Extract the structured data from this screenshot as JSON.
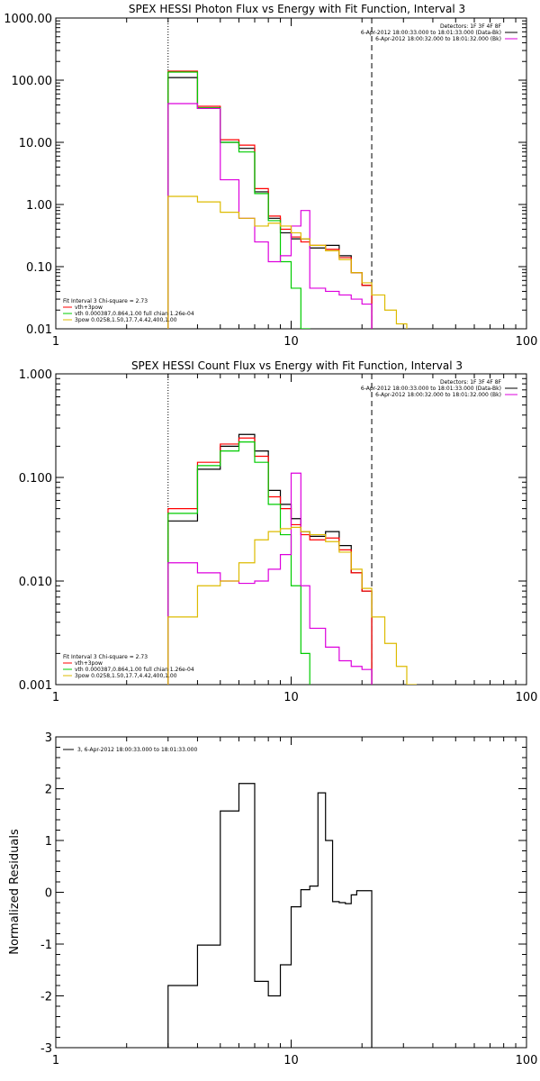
{
  "chart_data": [
    {
      "type": "line",
      "title": "SPEX HESSI Photon Flux vs Energy with Fit Function, Interval 3",
      "xlabel": "",
      "ylabel": "",
      "xscale": "log",
      "yscale": "log",
      "xlim": [
        1,
        100
      ],
      "ylim": [
        0.01,
        1000
      ],
      "x_ticks": [
        {
          "v": 1,
          "label": "1"
        },
        {
          "v": 10,
          "label": "10"
        },
        {
          "v": 100,
          "label": "100"
        }
      ],
      "y_ticks": [
        {
          "v": 0.01,
          "label": "0.01"
        },
        {
          "v": 0.1,
          "label": "0.10"
        },
        {
          "v": 1,
          "label": "1.00"
        },
        {
          "v": 10,
          "label": "10.00"
        },
        {
          "v": 100,
          "label": "100.00"
        },
        {
          "v": 1000,
          "label": "1000.00"
        }
      ],
      "vlines": [
        {
          "x": 3.0,
          "style": "dotted"
        },
        {
          "x": 22.0,
          "style": "dashed"
        }
      ],
      "edges": [
        3.0,
        4.0,
        5.0,
        6.0,
        7.0,
        8.0,
        9.0,
        10.0,
        11.0,
        12.0,
        14.0,
        16.0,
        18.0,
        20.0,
        22.0,
        25.0,
        28.0,
        31.0
      ],
      "series": [
        {
          "name": "",
          "color": "#000000",
          "values": [
            110,
            35,
            10,
            8,
            1.6,
            0.6,
            0.35,
            0.28,
            0.28,
            0.2,
            0.22,
            0.15,
            0.08,
            0.05,
            null,
            null,
            null
          ]
        },
        {
          "name": "",
          "color": "#ff0000",
          "values": [
            140,
            38,
            11,
            9,
            1.8,
            0.65,
            0.4,
            0.3,
            0.25,
            0.22,
            0.19,
            0.14,
            0.08,
            0.05,
            null,
            null,
            null
          ]
        },
        {
          "name": "",
          "color": "#00cc00",
          "values": [
            135,
            36,
            10,
            7,
            1.5,
            0.55,
            0.12,
            0.045,
            0.01,
            null,
            null,
            null,
            null,
            null,
            null,
            null,
            null
          ]
        },
        {
          "name": "",
          "color": "#dd00dd",
          "values": [
            42,
            35,
            2.5,
            0.6,
            0.25,
            0.12,
            0.15,
            0.45,
            0.8,
            0.045,
            0.04,
            0.035,
            0.03,
            0.025,
            null,
            null,
            null
          ]
        },
        {
          "name": "",
          "color": "#ddbb00",
          "values": [
            1.35,
            1.1,
            0.75,
            0.6,
            0.45,
            0.5,
            0.45,
            0.35,
            0.28,
            0.22,
            0.18,
            0.13,
            0.08,
            0.055,
            0.035,
            0.02,
            0.012
          ]
        }
      ],
      "legend_top": [
        {
          "text": "Detectors: 1F 3F 4F 8F",
          "color": ""
        },
        {
          "text": "6-Apr-2012 18:00:33.000 to 18:01:33.000 (Data-Bk)",
          "color": "#000000"
        },
        {
          "text": "6-Apr-2012 18:00:32.000 to 18:01:32.000 (Bk)",
          "color": "#dd00dd"
        }
      ],
      "legend_bottom": [
        {
          "text": "Fit Interval 3    Chi-square = 2.73",
          "color": ""
        },
        {
          "text": "vth+3pow",
          "color": "#ff0000"
        },
        {
          "text": "vth 0.000387,0.864,1.00  full chian 1.26e-04",
          "color": "#00cc00"
        },
        {
          "text": "3pow 0.0258,1.50,17.7,4.42,400,1.00",
          "color": "#ddbb00"
        }
      ]
    },
    {
      "type": "line",
      "title": "SPEX HESSI Count Flux vs Energy with Fit Function, Interval 3",
      "xlabel": "",
      "ylabel": "",
      "xscale": "log",
      "yscale": "log",
      "xlim": [
        1,
        100
      ],
      "ylim": [
        0.001,
        1
      ],
      "x_ticks": [
        {
          "v": 1,
          "label": "1"
        },
        {
          "v": 10,
          "label": "10"
        },
        {
          "v": 100,
          "label": "100"
        }
      ],
      "y_ticks": [
        {
          "v": 0.001,
          "label": "0.001"
        },
        {
          "v": 0.01,
          "label": "0.010"
        },
        {
          "v": 0.1,
          "label": "0.100"
        },
        {
          "v": 1,
          "label": "1.000"
        }
      ],
      "vlines": [
        {
          "x": 3.0,
          "style": "dotted"
        },
        {
          "x": 22.0,
          "style": "dashed"
        }
      ],
      "edges": [
        3.0,
        4.0,
        5.0,
        6.0,
        7.0,
        8.0,
        9.0,
        10.0,
        11.0,
        12.0,
        14.0,
        16.0,
        18.0,
        20.0,
        22.0,
        25.0,
        28.0,
        31.0,
        34.0
      ],
      "series": [
        {
          "name": "",
          "color": "#000000",
          "values": [
            0.038,
            0.12,
            0.2,
            0.26,
            0.18,
            0.075,
            0.055,
            0.04,
            0.03,
            0.027,
            0.03,
            0.022,
            0.012,
            0.008,
            null,
            null,
            null,
            null
          ]
        },
        {
          "name": "",
          "color": "#ff0000",
          "values": [
            0.05,
            0.14,
            0.21,
            0.24,
            0.16,
            0.065,
            0.05,
            0.035,
            0.028,
            0.025,
            0.026,
            0.02,
            0.012,
            0.008,
            null,
            null,
            null,
            null
          ]
        },
        {
          "name": "",
          "color": "#00cc00",
          "values": [
            0.045,
            0.13,
            0.18,
            0.22,
            0.14,
            0.055,
            0.028,
            0.009,
            0.002,
            null,
            null,
            null,
            null,
            null,
            null,
            null,
            null,
            null
          ]
        },
        {
          "name": "",
          "color": "#dd00dd",
          "values": [
            0.015,
            0.012,
            0.01,
            0.0095,
            0.01,
            0.013,
            0.018,
            0.11,
            0.009,
            0.0035,
            0.0023,
            0.0017,
            0.0015,
            0.0014,
            null,
            null,
            null,
            null
          ]
        },
        {
          "name": "",
          "color": "#ddbb00",
          "values": [
            0.0045,
            0.009,
            0.01,
            0.015,
            0.025,
            0.03,
            0.032,
            0.033,
            0.03,
            0.028,
            0.024,
            0.019,
            0.013,
            0.0085,
            0.0045,
            0.0025,
            0.0015,
            0.001
          ]
        }
      ],
      "legend_top": [
        {
          "text": "Detectors: 1F 3F 4F 8F",
          "color": ""
        },
        {
          "text": "6-Apr-2012 18:00:33.000 to 18:01:33.000 (Data-Bk)",
          "color": "#000000"
        },
        {
          "text": "6-Apr-2012 18:00:32.000 to 18:01:32.000 (Bk)",
          "color": "#dd00dd"
        }
      ],
      "legend_bottom": [
        {
          "text": "Fit Interval 3    Chi-square = 2.73",
          "color": ""
        },
        {
          "text": "vth+3pow",
          "color": "#ff0000"
        },
        {
          "text": "vth 0.000387,0.864,1.00  full chian 1.26e-04",
          "color": "#00cc00"
        },
        {
          "text": "3pow 0.0258,1.50,17.7,4.42,400,1.00",
          "color": "#ddbb00"
        }
      ]
    },
    {
      "type": "line",
      "title": "",
      "xlabel": "",
      "ylabel": "Normalized Residuals",
      "xscale": "log",
      "yscale": "linear",
      "xlim": [
        1,
        100
      ],
      "ylim": [
        -3,
        3
      ],
      "x_ticks": [
        {
          "v": 1,
          "label": "1"
        },
        {
          "v": 10,
          "label": "10"
        },
        {
          "v": 100,
          "label": "100"
        }
      ],
      "y_ticks": [
        {
          "v": -3,
          "label": "-3"
        },
        {
          "v": -2,
          "label": "-2"
        },
        {
          "v": -1,
          "label": "-1"
        },
        {
          "v": 0,
          "label": "0"
        },
        {
          "v": 1,
          "label": "1"
        },
        {
          "v": 2,
          "label": "2"
        },
        {
          "v": 3,
          "label": "3"
        }
      ],
      "vlines": [],
      "edges": [
        3.0,
        4.0,
        5.0,
        6.0,
        7.0,
        8.0,
        9.0,
        10.0,
        11.0,
        12.0,
        13.0,
        14.0,
        15.0,
        16.0,
        17.0,
        18.0,
        19.0,
        20.0,
        22.0
      ],
      "series": [
        {
          "name": "",
          "color": "#000000",
          "values": [
            -1.8,
            -1.02,
            1.57,
            2.1,
            -1.72,
            -2.0,
            -1.4,
            -0.28,
            0.05,
            0.12,
            1.92,
            1.0,
            -0.18,
            -0.2,
            -0.22,
            -0.05,
            0.03,
            0.03
          ]
        }
      ],
      "legend_top": [
        {
          "text": "3,  6-Apr-2012 18:00:33.000 to 18:01:33.000",
          "color": "#000000"
        }
      ],
      "legend_bottom": []
    }
  ]
}
